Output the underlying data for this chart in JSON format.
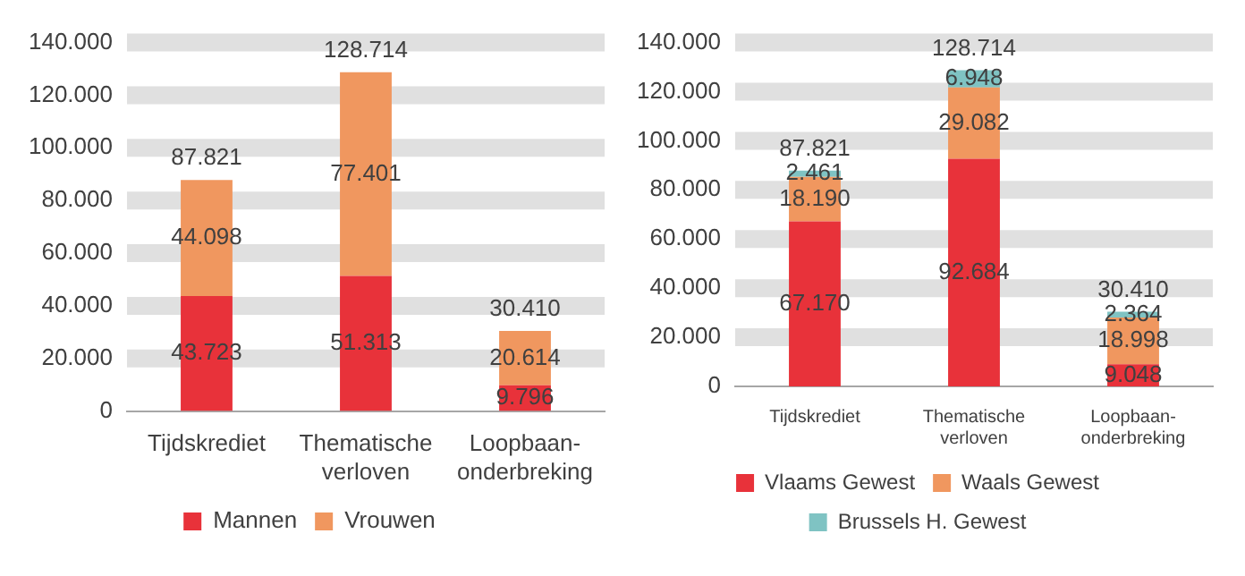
{
  "chart_data": [
    {
      "type": "bar",
      "stacked": true,
      "categories": [
        "Tijdskrediet",
        "Thematische verloven",
        "Loopbaan-onderbreking"
      ],
      "series": [
        {
          "name": "Mannen",
          "color": "#e8323a",
          "values": [
            43723,
            51313,
            9796
          ],
          "value_labels": [
            "43.723",
            "51.313",
            "9.796"
          ]
        },
        {
          "name": "Vrouwen",
          "color": "#f0975f",
          "values": [
            44098,
            77401,
            20614
          ],
          "value_labels": [
            "44.098",
            "77.401",
            "20.614"
          ]
        }
      ],
      "totals": [
        "87.821",
        "128.714",
        "30.410"
      ],
      "ylim": [
        0,
        140000
      ],
      "yticks": [
        {
          "value": 0,
          "label": "0"
        },
        {
          "value": 20000,
          "label": "20.000"
        },
        {
          "value": 40000,
          "label": "40.000"
        },
        {
          "value": 60000,
          "label": "60.000"
        },
        {
          "value": 80000,
          "label": "80.000"
        },
        {
          "value": 100000,
          "label": "100.000"
        },
        {
          "value": 120000,
          "label": "120.000"
        },
        {
          "value": 140000,
          "label": "140.000"
        }
      ],
      "grid": "y",
      "legend": "bottom"
    },
    {
      "type": "bar",
      "stacked": true,
      "categories": [
        "Tijdskrediet",
        "Thematische verloven",
        "Loopbaan-onderbreking"
      ],
      "series": [
        {
          "name": "Vlaams Gewest",
          "color": "#e8323a",
          "values": [
            67170,
            92684,
            9048
          ],
          "value_labels": [
            "67.170",
            "92.684",
            "9.048"
          ]
        },
        {
          "name": "Waals Gewest",
          "color": "#f0975f",
          "values": [
            18190,
            29082,
            18998
          ],
          "value_labels": [
            "18.190",
            "29.082",
            "18.998"
          ]
        },
        {
          "name": "Brussels H. Gewest",
          "color": "#7fc3c3",
          "values": [
            2461,
            6948,
            2364
          ],
          "value_labels": [
            "2.461",
            "6.948",
            "2.364"
          ]
        }
      ],
      "totals": [
        "87.821",
        "128.714",
        "30.410"
      ],
      "ylim": [
        0,
        140000
      ],
      "yticks": [
        {
          "value": 0,
          "label": "0"
        },
        {
          "value": 20000,
          "label": "20.000"
        },
        {
          "value": 40000,
          "label": "40.000"
        },
        {
          "value": 60000,
          "label": "60.000"
        },
        {
          "value": 80000,
          "label": "80.000"
        },
        {
          "value": 100000,
          "label": "100.000"
        },
        {
          "value": 120000,
          "label": "120.000"
        },
        {
          "value": 140000,
          "label": "140.000"
        }
      ],
      "grid": "y",
      "legend": "bottom"
    }
  ]
}
